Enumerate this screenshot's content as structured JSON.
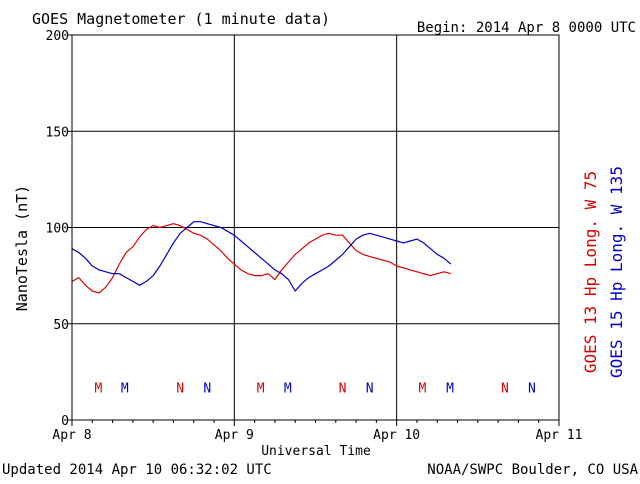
{
  "header": {
    "title": "GOES Magnetometer (1 minute data)",
    "begin": "Begin:  2014 Apr 8 0000 UTC"
  },
  "footer": {
    "updated": "Updated 2014 Apr 10 06:32:02 UTC",
    "credit": "NOAA/SWPC Boulder, CO USA"
  },
  "colors": {
    "goes13": "#dd0000",
    "goes15": "#0000cc",
    "axis": "#000000"
  },
  "chart_data": {
    "type": "line",
    "title": "GOES Magnetometer (1 minute data)",
    "xlabel": "Universal Time",
    "ylabel": "NanoTesla (nT)",
    "xlim": [
      0,
      72
    ],
    "x_unit": "hours since 2014 Apr 8 0000 UTC",
    "ylim": [
      0,
      200
    ],
    "yticks": [
      0,
      50,
      100,
      150,
      200
    ],
    "xticks": [
      {
        "x": 0,
        "label": "Apr 8"
      },
      {
        "x": 24,
        "label": "Apr 9"
      },
      {
        "x": 48,
        "label": "Apr 10"
      },
      {
        "x": 72,
        "label": "Apr 11"
      }
    ],
    "grid": true,
    "legend_position": "right",
    "series": [
      {
        "name": "GOES 13 Hp  Long. W 75",
        "color": "#dd0000",
        "x": [
          0,
          1,
          2,
          3,
          4,
          5,
          6,
          7,
          8,
          9,
          10,
          11,
          12,
          13,
          14,
          15,
          16,
          17,
          18,
          19,
          20,
          21,
          22,
          23,
          24,
          25,
          26,
          27,
          28,
          29,
          30,
          31,
          32,
          33,
          34,
          35,
          36,
          37,
          38,
          39,
          40,
          41,
          42,
          43,
          44,
          45,
          46,
          47,
          48,
          49,
          50,
          51,
          52,
          53,
          54,
          55,
          56
        ],
        "y": [
          72,
          74,
          70,
          67,
          66,
          69,
          74,
          81,
          87,
          90,
          95,
          99,
          101,
          100,
          101,
          102,
          101,
          99,
          97,
          96,
          94,
          91,
          88,
          84,
          81,
          78,
          76,
          75,
          75,
          76,
          73,
          78,
          82,
          86,
          89,
          92,
          94,
          96,
          97,
          96,
          96,
          92,
          88,
          86,
          85,
          84,
          83,
          82,
          80,
          79,
          78,
          77,
          76,
          75,
          76,
          77,
          76
        ]
      },
      {
        "name": "GOES 15 Hp  Long. W 135",
        "color": "#0000cc",
        "x": [
          0,
          1,
          2,
          3,
          4,
          5,
          6,
          7,
          8,
          9,
          10,
          11,
          12,
          13,
          14,
          15,
          16,
          17,
          18,
          19,
          20,
          21,
          22,
          23,
          24,
          25,
          26,
          27,
          28,
          29,
          30,
          31,
          32,
          33,
          34,
          35,
          36,
          37,
          38,
          39,
          40,
          41,
          42,
          43,
          44,
          45,
          46,
          47,
          48,
          49,
          50,
          51,
          52,
          53,
          54,
          55,
          56
        ],
        "y": [
          89,
          87,
          84,
          80,
          78,
          77,
          76,
          76,
          74,
          72,
          70,
          72,
          75,
          80,
          86,
          92,
          97,
          100,
          103,
          103,
          102,
          101,
          100,
          98,
          96,
          93,
          90,
          87,
          84,
          81,
          78,
          76,
          73,
          67,
          71,
          74,
          76,
          78,
          80,
          83,
          86,
          90,
          94,
          96,
          97,
          96,
          95,
          94,
          93,
          92,
          93,
          94,
          92,
          89,
          86,
          84,
          81
        ]
      }
    ],
    "markers": [
      {
        "label": "M",
        "x": 3.9,
        "series": 0
      },
      {
        "label": "M",
        "x": 7.8,
        "series": 1
      },
      {
        "label": "N",
        "x": 16,
        "series": 0
      },
      {
        "label": "N",
        "x": 20,
        "series": 1
      },
      {
        "label": "M",
        "x": 27.9,
        "series": 0
      },
      {
        "label": "M",
        "x": 31.9,
        "series": 1
      },
      {
        "label": "N",
        "x": 40,
        "series": 0
      },
      {
        "label": "N",
        "x": 44,
        "series": 1
      },
      {
        "label": "M",
        "x": 51.8,
        "series": 0
      },
      {
        "label": "M",
        "x": 55.9,
        "series": 1
      },
      {
        "label": "N",
        "x": 64,
        "series": 0
      },
      {
        "label": "N",
        "x": 68,
        "series": 1
      }
    ],
    "marker_y": 17
  }
}
